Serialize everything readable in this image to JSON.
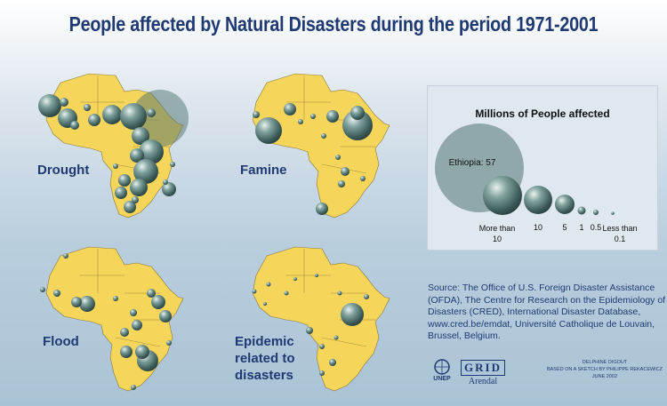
{
  "title": "People affected by Natural Disasters during the period 1971-2001",
  "maps": [
    {
      "label": "Drought"
    },
    {
      "label": "Famine"
    },
    {
      "label": "Flood"
    },
    {
      "label": "Epidemic related to disasters"
    }
  ],
  "legend": {
    "title": "Millions of People affected",
    "ethiopia_label": "Ethiopia: 57",
    "sizes": [
      {
        "label": "More than 10"
      },
      {
        "label": "10"
      },
      {
        "label": "5"
      },
      {
        "label": "1"
      },
      {
        "label": "0.5"
      },
      {
        "label": "Less than 0.1"
      }
    ]
  },
  "source": "Source: The Office of U.S. Foreign Disaster Assistance (OFDA), The Centre for Research on the Epidemiology of Disasters (CRED), International Disaster Database, www.cred.be/emdat, Université Catholique de Louvain, Brussel, Belgium.",
  "logos": {
    "unep": "UNEP",
    "grid": "GRID",
    "arendal": "Arendal"
  },
  "credit": {
    "author": "DELPHINE DIGOUT",
    "based_on": "BASED ON A SKETCH BY PHILIPPE REKACEWICZ",
    "date": "JUNE 2002"
  },
  "colors": {
    "land": "#f5d55a",
    "border": "#8a7a3a",
    "bubble": "#4f7470",
    "title": "#1f3a73"
  }
}
